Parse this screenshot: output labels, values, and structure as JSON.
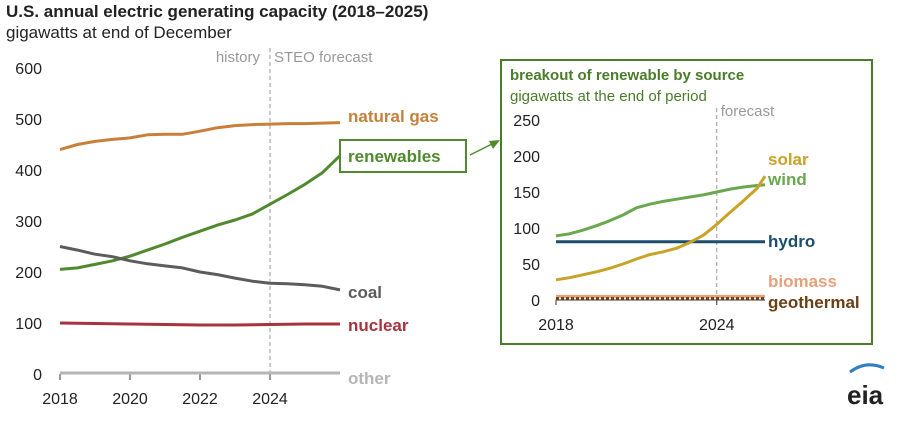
{
  "header": {
    "title": "U.S. annual electric generating capacity (2018–2025)",
    "subtitle": "gigawatts at end of December"
  },
  "brand": {
    "logo_text": "eia"
  },
  "colors": {
    "natural_gas": "#c87f3a",
    "renewables": "#4f8a2e",
    "coal": "#5c5c5c",
    "nuclear": "#a8323e",
    "other": "#b5b5b5",
    "solar": "#c9a227",
    "wind": "#6aa84f",
    "hydro": "#1d4e6b",
    "biomass": "#e8a07a",
    "geothermal": "#6b3e14",
    "inset_border": "#4a7c2a",
    "divider": "#999999"
  },
  "chart_data": [
    {
      "type": "line",
      "title": "U.S. annual electric generating capacity (2018–2025)",
      "subtitle": "gigawatts at end of December",
      "xlabel": "",
      "ylabel": "",
      "xlim": [
        2018,
        2026
      ],
      "ylim": [
        0,
        600
      ],
      "xticks": [
        "2018",
        "2020",
        "2022",
        "2024"
      ],
      "yticks": [
        "0",
        "100",
        "200",
        "300",
        "400",
        "500",
        "600"
      ],
      "grid": false,
      "annotations": {
        "history": "history",
        "forecast": "STEO forecast",
        "divider_x": 2024
      },
      "series": [
        {
          "name": "natural gas",
          "x": [
            2018,
            2018.5,
            2019,
            2019.5,
            2020,
            2020.5,
            2021,
            2021.5,
            2022,
            2022.5,
            2023,
            2023.5,
            2024,
            2024.5,
            2025,
            2025.5,
            2026
          ],
          "values": [
            440,
            450,
            456,
            460,
            463,
            469,
            470,
            470,
            476,
            483,
            487,
            489,
            490,
            491,
            491,
            492,
            493
          ]
        },
        {
          "name": "renewables",
          "x": [
            2018,
            2018.5,
            2019,
            2019.5,
            2020,
            2020.5,
            2021,
            2021.5,
            2022,
            2022.5,
            2023,
            2023.5,
            2024,
            2024.5,
            2025,
            2025.5,
            2026
          ],
          "values": [
            205,
            208,
            215,
            222,
            231,
            243,
            255,
            268,
            280,
            292,
            302,
            314,
            333,
            352,
            372,
            395,
            428
          ]
        },
        {
          "name": "coal",
          "x": [
            2018,
            2018.5,
            2019,
            2019.5,
            2020,
            2020.5,
            2021,
            2021.5,
            2022,
            2022.5,
            2023,
            2023.5,
            2024,
            2024.5,
            2025,
            2025.5,
            2026
          ],
          "values": [
            250,
            243,
            235,
            230,
            222,
            216,
            212,
            208,
            200,
            195,
            188,
            182,
            178,
            177,
            175,
            172,
            165
          ]
        },
        {
          "name": "nuclear",
          "x": [
            2018,
            2019,
            2020,
            2021,
            2022,
            2023,
            2024,
            2025,
            2026
          ],
          "values": [
            100,
            99,
            98,
            97,
            96,
            96,
            97,
            98,
            98
          ]
        },
        {
          "name": "other",
          "x": [
            2018,
            2026
          ],
          "values": [
            2,
            2
          ]
        }
      ]
    },
    {
      "type": "line",
      "title": "breakout of renewable by source",
      "subtitle": "gigawatts at the end of period",
      "xlabel": "",
      "ylabel": "",
      "xlim": [
        2018,
        2025.8
      ],
      "ylim": [
        0,
        250
      ],
      "xticks": [
        "2018",
        "2024"
      ],
      "yticks": [
        "0",
        "50",
        "100",
        "150",
        "200",
        "250"
      ],
      "grid": false,
      "annotations": {
        "forecast": "forecast",
        "divider_x": 2024
      },
      "series": [
        {
          "name": "solar",
          "x": [
            2018,
            2018.5,
            2019,
            2019.5,
            2020,
            2020.5,
            2021,
            2021.5,
            2022,
            2022.5,
            2023,
            2023.5,
            2024,
            2024.5,
            2025,
            2025.5,
            2025.8
          ],
          "values": [
            28,
            31,
            35,
            39,
            44,
            50,
            57,
            63,
            67,
            72,
            80,
            90,
            105,
            122,
            138,
            155,
            172
          ]
        },
        {
          "name": "wind",
          "x": [
            2018,
            2018.5,
            2019,
            2019.5,
            2020,
            2020.5,
            2021,
            2021.5,
            2022,
            2022.5,
            2023,
            2023.5,
            2024,
            2024.5,
            2025,
            2025.5,
            2025.8
          ],
          "values": [
            89,
            92,
            97,
            103,
            110,
            118,
            128,
            133,
            137,
            140,
            143,
            146,
            150,
            154,
            157,
            159,
            160
          ]
        },
        {
          "name": "hydro",
          "x": [
            2018,
            2025.8
          ],
          "values": [
            81,
            81
          ]
        },
        {
          "name": "biomass",
          "x": [
            2018,
            2025.8
          ],
          "values": [
            5,
            5
          ]
        },
        {
          "name": "geothermal",
          "x": [
            2018,
            2025.8
          ],
          "values": [
            2,
            2
          ]
        }
      ]
    }
  ]
}
